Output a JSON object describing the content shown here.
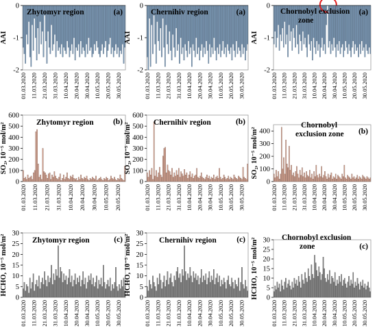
{
  "figure": {
    "panel_letters": [
      "(a)",
      "(b)",
      "(c)"
    ]
  },
  "chart_data": [
    {
      "id": "aai-zhytomyr",
      "type": "bar",
      "title": "Zhytomyr region",
      "panel": "(a)",
      "ylabel": "AAI",
      "ylim": [
        -2,
        0
      ],
      "yticks": [
        "0",
        "-1",
        "-2"
      ],
      "ytick_values": [
        0,
        -1,
        -2
      ],
      "bar_color": "#7b98b4",
      "edge_color": "#3f5770",
      "xtick_labels": [
        "01.03.2020",
        "11.03.2020",
        "21.03.2020",
        "31.03.2020",
        "10.04.2020",
        "20.04.2020",
        "30.04.2020",
        "10.05.2020",
        "20.05.2020",
        "30.05.2020"
      ],
      "values": [
        -1.3,
        -1.5,
        -1.8,
        -0.9,
        -1.2,
        -0.5,
        -1.6,
        -1.9,
        -0.6,
        -1.4,
        -0.4,
        -1.0,
        -1.7,
        -0.7,
        -1.5,
        -0.5,
        -1.2,
        -0.8,
        -1.6,
        -0.3,
        -1.1,
        -1.8,
        -0.8,
        -1.3,
        -1.5,
        -0.6,
        -1.4,
        -1.2,
        -0.9,
        -1.6,
        -1.1,
        -1.4,
        -1.3,
        -1.5,
        -1.2,
        -1.6,
        -1.3,
        -1.4,
        -1.5,
        -1.1,
        -1.3,
        -1.6,
        -1.4,
        -1.2,
        -1.5,
        -1.0,
        -1.7,
        -1.3,
        -1.4,
        -1.2,
        -1.6,
        -1.1,
        -1.5,
        -1.3,
        -1.4,
        -1.6,
        -1.2,
        -1.5,
        -1.0,
        -1.4,
        -1.3,
        -1.6,
        -1.5,
        -1.2,
        -1.4,
        -1.1,
        -1.3,
        -1.5,
        -1.6,
        -1.4,
        -1.2,
        -1.5,
        -1.3,
        -1.1,
        -1.6,
        -1.4,
        -1.2,
        -1.0,
        -1.5,
        -1.3,
        -1.6,
        -1.4,
        -1.2,
        -1.5,
        -1.3,
        -1.6,
        -1.4,
        -1.5,
        -1.2,
        -1.8,
        -1.3
      ]
    },
    {
      "id": "aai-chernihiv",
      "type": "bar",
      "title": "Chernihiv region",
      "panel": "(a)",
      "ylabel": "AAI",
      "ylim": [
        -2,
        0
      ],
      "yticks": [
        "0",
        "-1",
        "-2"
      ],
      "ytick_values": [
        0,
        -1,
        -2
      ],
      "bar_color": "#7b98b4",
      "edge_color": "#3f5770",
      "xtick_labels": [
        "01.03.2020",
        "11.03.2020",
        "21.03.2020",
        "31.03.2020",
        "10.04.2020",
        "20.04.2020",
        "30.04.2020",
        "10.05.2020",
        "20.05.2020",
        "30.05.2020"
      ],
      "values": [
        -1.6,
        -2.0,
        -0.4,
        -1.9,
        -0.6,
        -1.5,
        -0.3,
        -1.2,
        -1.8,
        -0.5,
        -1.1,
        -1.4,
        -0.7,
        -1.6,
        -0.4,
        -1.3,
        -1.9,
        -0.6,
        -1.2,
        -1.5,
        -0.8,
        -1.4,
        -1.7,
        -0.9,
        -1.3,
        -1.6,
        -0.7,
        -1.4,
        -1.2,
        -1.8,
        -1.0,
        -1.5,
        -1.3,
        -1.7,
        -1.2,
        -1.4,
        -1.6,
        -1.1,
        -1.5,
        -1.3,
        -1.9,
        -1.2,
        -1.4,
        -1.6,
        -1.0,
        -1.5,
        -1.3,
        -1.7,
        -1.4,
        -1.2,
        -1.6,
        -1.3,
        -1.5,
        -1.1,
        -1.4,
        -1.8,
        -1.2,
        -1.6,
        -1.3,
        -1.5,
        -1.0,
        -1.4,
        -1.7,
        -1.3,
        -1.5,
        -1.2,
        -1.6,
        -1.4,
        -1.1,
        -1.5,
        -1.3,
        -1.6,
        -1.2,
        -1.4,
        -1.5,
        -1.3,
        -1.7,
        -1.2,
        -1.4,
        -1.6,
        -1.1,
        -1.5,
        -1.3,
        -1.4,
        -1.6,
        -1.2,
        -1.5,
        -1.3,
        -1.7,
        -1.4,
        -1.2
      ]
    },
    {
      "id": "aai-chornobyl",
      "type": "bar",
      "title": "Chornobyl exclusion zone",
      "panel": "(a)",
      "ylabel": "AAI",
      "ylim": [
        -2,
        0
      ],
      "yticks": [
        "0",
        "-1",
        "-2"
      ],
      "ytick_values": [
        0,
        -1,
        -2
      ],
      "bar_color": "#7b98b4",
      "edge_color": "#3f5770",
      "highlight_index": 50,
      "highlight_color": "#e02020",
      "xtick_labels": [
        "01.03.2020",
        "11.03.2020",
        "21.03.2020",
        "31.03.2020",
        "10.04.2020",
        "20.04.2020",
        "30.04.2020",
        "10.05.2020",
        "20.05.2020",
        "30.05.2020"
      ],
      "values": [
        -1.2,
        -0.8,
        -1.3,
        -1.0,
        -0.6,
        -1.4,
        -0.9,
        -1.1,
        -0.7,
        -1.3,
        -0.5,
        -1.2,
        -0.9,
        -1.6,
        -0.6,
        -1.1,
        -0.8,
        -1.4,
        -0.7,
        -1.0,
        -1.3,
        -0.6,
        -1.2,
        -1.5,
        -0.9,
        -1.1,
        -1.4,
        -0.8,
        -1.2,
        -1.0,
        -1.3,
        -1.6,
        -0.9,
        -1.2,
        -1.4,
        -1.1,
        -1.7,
        -1.0,
        -1.3,
        -1.5,
        -1.1,
        -1.4,
        -1.2,
        -1.6,
        -1.3,
        -1.0,
        -1.4,
        -1.2,
        -1.5,
        -0.6,
        0.3,
        -1.3,
        -1.1,
        -1.5,
        -1.2,
        -1.4,
        -1.0,
        -1.3,
        -1.6,
        -1.2,
        -1.4,
        -1.1,
        -1.5,
        -1.3,
        -1.2,
        -1.6,
        -1.4,
        -1.1,
        -1.3,
        -1.5,
        -1.2,
        -1.4,
        -1.6,
        -1.3,
        -1.1,
        -1.5,
        -1.2,
        -1.4,
        -1.3,
        -1.6,
        -1.2,
        -1.5,
        -1.1,
        -1.4,
        -1.3,
        -1.6,
        -1.2,
        -1.4,
        -1.5,
        -1.3,
        -1.5
      ]
    },
    {
      "id": "so2-zhytomyr",
      "type": "bar",
      "title": "Zhytomyr region",
      "panel": "(b)",
      "ylabel": "SO₂, 10⁻⁵ mol/m²",
      "ylim": [
        0,
        600
      ],
      "yticks": [
        "0",
        "100",
        "200",
        "300",
        "400",
        "500",
        "600"
      ],
      "ytick_values": [
        0,
        100,
        200,
        300,
        400,
        500,
        600
      ],
      "bar_color": "#d9a38f",
      "edge_color": "#6b5048",
      "xtick_labels": [
        "01.03.2020",
        "11.03.2020",
        "21.03.2020",
        "31.03.2020",
        "10.04.2020",
        "20.04.2020",
        "30.04.2020",
        "10.05.2020",
        "20.05.2020"
      ],
      "values": [
        100,
        30,
        40,
        20,
        60,
        30,
        40,
        50,
        20,
        80,
        100,
        450,
        470,
        160,
        40,
        60,
        20,
        300,
        90,
        80,
        60,
        30,
        70,
        80,
        20,
        60,
        40,
        90,
        50,
        30,
        20,
        40,
        70,
        10,
        30,
        60,
        20,
        40,
        80,
        30,
        20,
        50,
        40,
        60,
        30,
        20,
        30,
        10,
        40,
        20,
        60,
        30,
        20,
        40,
        30,
        50,
        20,
        10,
        30,
        20,
        40,
        30,
        20,
        50,
        10,
        20,
        30,
        40,
        20,
        10,
        30,
        20,
        40,
        30,
        10,
        20,
        50,
        30,
        20,
        40,
        20,
        10,
        30,
        20,
        60,
        30,
        20,
        10,
        140
      ]
    },
    {
      "id": "so2-chernihiv",
      "type": "bar",
      "title": "Chernihiv region",
      "panel": "(b)",
      "ylabel": "SO₂, 10⁻⁵ mol/m²",
      "ylim": [
        0,
        600
      ],
      "yticks": [
        "0",
        "100",
        "200",
        "300",
        "400",
        "500",
        "600"
      ],
      "ytick_values": [
        0,
        100,
        200,
        300,
        400,
        500,
        600
      ],
      "bar_color": "#d9a38f",
      "edge_color": "#6b5048",
      "xtick_labels": [
        "01.03.2020",
        "11.03.2020",
        "21.03.2020",
        "31.03.2020",
        "10.04.2020",
        "20.04.2020",
        "30.04.2020",
        "10.05.2020",
        "20.05.2020",
        "30.05.2020"
      ],
      "values": [
        80,
        40,
        100,
        60,
        120,
        20,
        540,
        50,
        100,
        40,
        80,
        130,
        60,
        40,
        230,
        300,
        310,
        80,
        150,
        100,
        90,
        60,
        120,
        40,
        80,
        50,
        100,
        60,
        120,
        40,
        90,
        70,
        50,
        110,
        60,
        80,
        30,
        60,
        90,
        40,
        70,
        30,
        50,
        60,
        120,
        40,
        30,
        50,
        80,
        40,
        30,
        20,
        40,
        60,
        30,
        50,
        20,
        40,
        30,
        60,
        20,
        40,
        50,
        30,
        120,
        40,
        20,
        30,
        60,
        40,
        20,
        30,
        50,
        20,
        40,
        30,
        20,
        60,
        40,
        30,
        20,
        50,
        40,
        30,
        20,
        130,
        40,
        30,
        20,
        160
      ]
    },
    {
      "id": "so2-chornobyl",
      "type": "bar",
      "title": "Chornobyl exclusion zone",
      "panel": "(b)",
      "ylabel": "SO₂, 10⁻⁵ mol/m²",
      "ylim": [
        0,
        450
      ],
      "yticks": [
        "0",
        "100",
        "200",
        "300",
        "400"
      ],
      "ytick_values": [
        0,
        100,
        200,
        300,
        400
      ],
      "bar_color": "#d9a38f",
      "edge_color": "#6b5048",
      "xtick_labels": [
        "01.03.2020",
        "11.03.2020",
        "21.03.2020",
        "31.03.2020",
        "10.04.2020",
        "20.04.2020",
        "30.04.2020",
        "10.05.2020",
        "20.05.2020",
        "30.05.2020"
      ],
      "values": [
        60,
        30,
        90,
        40,
        80,
        20,
        60,
        430,
        100,
        190,
        60,
        330,
        140,
        110,
        280,
        90,
        130,
        50,
        70,
        40,
        80,
        120,
        60,
        30,
        90,
        50,
        110,
        40,
        70,
        30,
        80,
        50,
        40,
        90,
        30,
        60,
        20,
        80,
        40,
        130,
        50,
        30,
        60,
        40,
        120,
        30,
        50,
        80,
        40,
        20,
        60,
        30,
        50,
        70,
        20,
        40,
        30,
        60,
        20,
        50,
        40,
        30,
        20,
        60,
        40,
        130,
        30,
        20,
        50,
        40,
        30,
        20,
        60,
        30,
        40,
        20,
        30,
        50,
        20,
        40,
        30,
        20,
        50,
        40,
        30,
        20,
        40,
        30,
        20,
        30
      ]
    },
    {
      "id": "hcho-zhytomyr",
      "type": "bar",
      "title": "Zhytomyr region",
      "panel": "(c)",
      "ylabel": "HCHO, 10⁻⁵ mol/m²",
      "ylim": [
        0,
        30
      ],
      "yticks": [
        "0",
        "5",
        "10",
        "15",
        "20",
        "25",
        "30"
      ],
      "ytick_values": [
        0,
        5,
        10,
        15,
        20,
        25,
        30
      ],
      "bar_color": "#8c8c8c",
      "edge_color": "#3c3c3c",
      "xtick_labels": [
        "01.03.2020",
        "11.03.2020",
        "21.03.2020",
        "31.03.2020",
        "10.04.2020",
        "20.04.2020",
        "30.04.2020",
        "10.05.2020",
        "20.05.2020",
        "30.05.2020"
      ],
      "values": [
        4,
        7,
        3,
        6,
        5,
        2,
        9,
        4,
        7,
        11,
        3,
        6,
        8,
        5,
        10,
        4,
        7,
        9,
        6,
        12,
        8,
        5,
        10,
        7,
        9,
        15,
        6,
        11,
        8,
        13,
        10,
        24,
        9,
        14,
        12,
        7,
        11,
        8,
        10,
        6,
        9,
        13,
        7,
        10,
        5,
        8,
        11,
        6,
        9,
        7,
        10,
        5,
        8,
        12,
        6,
        9,
        4,
        7,
        10,
        8,
        11,
        6,
        9,
        5,
        7,
        10,
        4,
        8,
        6,
        9,
        5,
        15,
        7,
        4,
        6,
        8,
        5,
        9,
        3,
        6,
        4,
        7,
        14,
        5,
        3,
        6,
        4,
        8,
        5,
        9,
        3
      ]
    },
    {
      "id": "hcho-chernihiv",
      "type": "bar",
      "title": "Chernihiv region",
      "panel": "(c)",
      "ylabel": "HCHO, 10⁻⁵ mol/m²",
      "ylim": [
        0,
        30
      ],
      "yticks": [
        "0",
        "5",
        "10",
        "15",
        "20",
        "25",
        "30"
      ],
      "ytick_values": [
        0,
        5,
        10,
        15,
        20,
        25,
        30
      ],
      "bar_color": "#8c8c8c",
      "edge_color": "#3c3c3c",
      "xtick_labels": [
        "01.03.2020",
        "11.03.2020",
        "21.03.2020",
        "31.03.2020",
        "10.04.2020",
        "20.04.2020",
        "30.04.2020",
        "10.05.2020",
        "20.05.2020",
        "30.05.2020"
      ],
      "values": [
        5,
        3,
        8,
        6,
        4,
        10,
        7,
        5,
        3,
        9,
        6,
        11,
        8,
        4,
        7,
        10,
        5,
        8,
        12,
        6,
        9,
        11,
        7,
        5,
        10,
        8,
        12,
        14,
        9,
        11,
        7,
        13,
        10,
        24,
        12,
        8,
        11,
        9,
        14,
        10,
        7,
        12,
        9,
        11,
        8,
        10,
        6,
        9,
        13,
        7,
        10,
        8,
        11,
        6,
        9,
        12,
        7,
        10,
        8,
        13,
        6,
        9,
        11,
        7,
        10,
        5,
        8,
        6,
        9,
        7,
        4,
        8,
        10,
        6,
        5,
        9,
        7,
        4,
        8,
        6,
        5,
        9,
        3,
        7,
        14,
        6,
        4,
        8,
        5,
        3
      ]
    },
    {
      "id": "hcho-chornobyl",
      "type": "bar",
      "title": "Chornobyl exclusion zone",
      "panel": "(c)",
      "ylabel": "HCHO, 10⁻⁵ mol/m²",
      "ylim": [
        0,
        30
      ],
      "yticks": [
        "0",
        "5",
        "10",
        "15",
        "20",
        "25",
        "30"
      ],
      "ytick_values": [
        0,
        5,
        10,
        15,
        20,
        25,
        30
      ],
      "bar_color": "#8c8c8c",
      "edge_color": "#3c3c3c",
      "xtick_labels": [
        "01.03.2020",
        "11.03.2020",
        "21.03.2020",
        "31.03.2020",
        "10.04.2020",
        "20.04.2020",
        "30.04.2020",
        "10.05.2020",
        "20.05.2020",
        "30.05.2020"
      ],
      "values": [
        3,
        6,
        4,
        8,
        5,
        7,
        3,
        9,
        6,
        4,
        8,
        10,
        5,
        7,
        9,
        6,
        4,
        8,
        5,
        10,
        7,
        9,
        6,
        11,
        8,
        5,
        12,
        9,
        7,
        13,
        10,
        8,
        15,
        11,
        9,
        17,
        12,
        10,
        22,
        18,
        14,
        11,
        16,
        13,
        9,
        12,
        21,
        15,
        10,
        8,
        12,
        9,
        14,
        7,
        11,
        10,
        8,
        13,
        6,
        9,
        7,
        11,
        8,
        12,
        6,
        9,
        10,
        7,
        5,
        8,
        11,
        6,
        9,
        7,
        13,
        5,
        8,
        6,
        10,
        7,
        4,
        8,
        6,
        9,
        5,
        7,
        4,
        6,
        8,
        5,
        3
      ]
    }
  ]
}
